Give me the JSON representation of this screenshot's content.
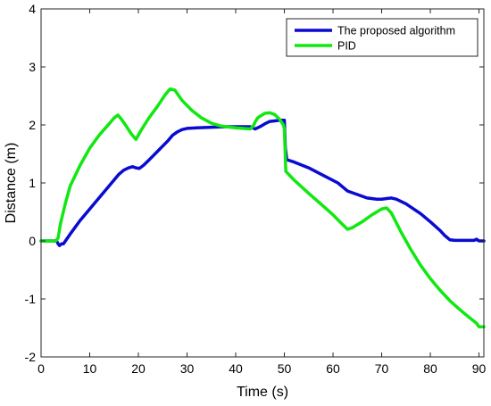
{
  "chart_data": {
    "type": "line",
    "title": "",
    "xlabel": "Time (s)",
    "ylabel": "Distance (m)",
    "xlim": [
      0,
      91
    ],
    "ylim": [
      -2,
      4
    ],
    "xticks": [
      0,
      10,
      20,
      30,
      40,
      50,
      60,
      70,
      80,
      90
    ],
    "yticks": [
      -2,
      -1,
      0,
      1,
      2,
      3,
      4
    ],
    "grid": false,
    "legend_position": "top-right",
    "series": [
      {
        "name": "The proposed algorithm",
        "color": "#0a0ad2",
        "x": [
          0,
          3.2,
          3.5,
          3.8,
          4.2,
          4.6,
          6,
          8,
          10,
          12,
          14,
          15,
          16,
          17,
          18,
          18.8,
          19.5,
          20.2,
          21,
          22,
          24,
          26,
          27,
          28,
          29,
          30,
          32,
          35,
          38,
          41,
          43,
          44,
          45,
          46,
          47,
          48,
          49,
          50,
          50.2,
          50.5,
          52,
          55,
          58,
          61,
          62,
          63,
          65,
          67,
          69,
          70,
          71,
          72,
          73,
          75,
          78,
          80,
          82,
          83,
          84,
          85,
          87,
          89,
          89.5,
          90,
          91
        ],
        "y": [
          0,
          0,
          -0.05,
          -0.08,
          -0.05,
          -0.05,
          0.12,
          0.35,
          0.55,
          0.75,
          0.95,
          1.05,
          1.15,
          1.22,
          1.26,
          1.28,
          1.26,
          1.25,
          1.3,
          1.38,
          1.55,
          1.72,
          1.82,
          1.88,
          1.92,
          1.94,
          1.95,
          1.96,
          1.97,
          1.97,
          1.97,
          1.93,
          1.97,
          2.02,
          2.06,
          2.07,
          2.08,
          2.08,
          1.6,
          1.4,
          1.36,
          1.26,
          1.13,
          1.0,
          0.93,
          0.86,
          0.8,
          0.74,
          0.72,
          0.72,
          0.73,
          0.74,
          0.72,
          0.64,
          0.47,
          0.33,
          0.18,
          0.09,
          0.02,
          0.01,
          0.01,
          0.01,
          0.03,
          0.0,
          0.0
        ]
      },
      {
        "name": "PID",
        "color": "#10e810",
        "x": [
          0,
          3.0,
          3.5,
          4,
          5,
          6,
          8,
          10,
          12,
          14,
          15,
          15.8,
          16.5,
          17.5,
          18.5,
          19.5,
          20.5,
          22,
          24,
          25.5,
          26.5,
          27.5,
          29,
          31,
          33,
          35,
          37,
          40,
          43,
          43.6,
          44,
          44.5,
          45,
          46,
          47,
          48,
          49,
          49.8,
          50,
          50.3,
          52,
          55,
          58,
          60,
          62,
          63,
          64,
          66,
          68,
          70,
          71,
          72,
          74,
          76,
          78,
          80,
          82,
          84,
          86,
          88,
          89.5,
          90,
          91
        ],
        "y": [
          0,
          0,
          0.05,
          0.3,
          0.65,
          0.95,
          1.3,
          1.6,
          1.83,
          2.02,
          2.12,
          2.17,
          2.1,
          1.98,
          1.85,
          1.75,
          1.9,
          2.1,
          2.33,
          2.52,
          2.62,
          2.6,
          2.42,
          2.25,
          2.12,
          2.03,
          1.98,
          1.95,
          1.93,
          1.98,
          2.05,
          2.12,
          2.15,
          2.2,
          2.21,
          2.18,
          2.1,
          2.0,
          1.93,
          1.2,
          1.05,
          0.82,
          0.6,
          0.45,
          0.28,
          0.2,
          0.23,
          0.33,
          0.45,
          0.55,
          0.57,
          0.48,
          0.15,
          -0.15,
          -0.42,
          -0.65,
          -0.85,
          -1.03,
          -1.18,
          -1.32,
          -1.42,
          -1.48,
          -1.48
        ]
      }
    ]
  }
}
